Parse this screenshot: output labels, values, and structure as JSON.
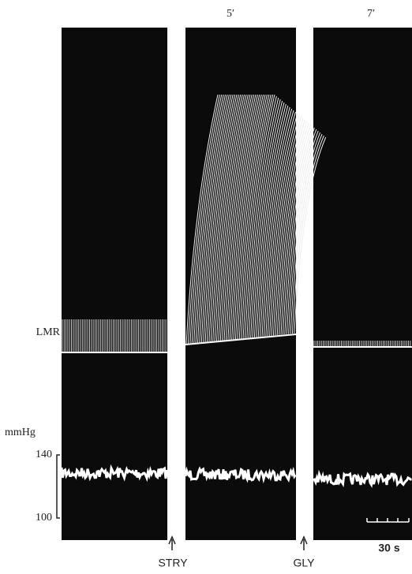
{
  "figure": {
    "panel_labels": [
      "5′",
      "7′"
    ],
    "trace_label": "LMR",
    "pressure_scale": {
      "unit": "mmHg",
      "top": 140,
      "bottom": 100
    },
    "markers": [
      "STRY",
      "GLY"
    ],
    "time_scale": "30 s"
  }
}
